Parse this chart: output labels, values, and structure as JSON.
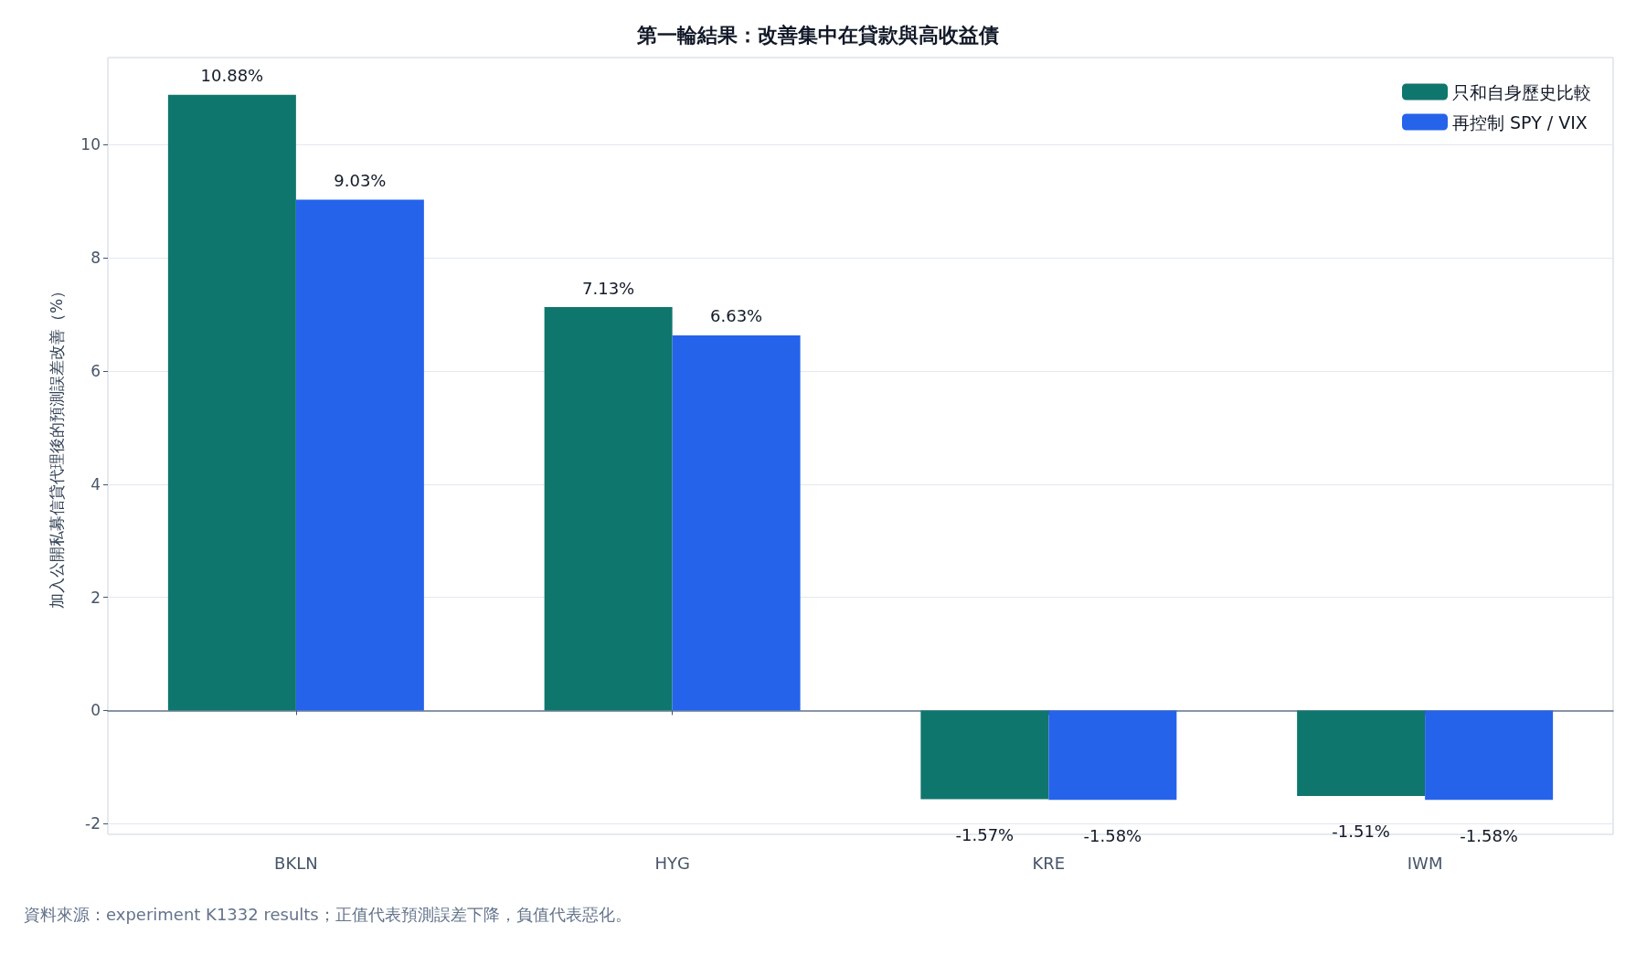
{
  "chart_data": {
    "type": "bar",
    "title": "第一輪結果：改善集中在貸款與高收益債",
    "ylabel": "加入公開私募信貸代理後的預測誤差改善（%）",
    "annotations": [
      "資料來源：experiment K1332 results；正值代表預測誤差下降，負值代表惡化。"
    ],
    "categories": [
      "BKLN",
      "HYG",
      "KRE",
      "IWM"
    ],
    "series": [
      {
        "name": "只和自身歷史比較",
        "color": "#0f766e",
        "values": [
          10.88,
          7.13,
          -1.57,
          -1.51
        ],
        "value_labels": [
          "10.88%",
          "7.13%",
          "-1.57%",
          "-1.51%"
        ]
      },
      {
        "name": "再控制 SPY / VIX",
        "color": "#2563eb",
        "values": [
          9.03,
          6.63,
          -1.58,
          -1.58
        ],
        "value_labels": [
          "9.03%",
          "6.63%",
          "-1.58%",
          "-1.58%"
        ]
      }
    ],
    "ylim": [
      -2.19,
      11.54
    ],
    "yticks": [
      -2,
      0,
      2,
      4,
      6,
      8,
      10
    ],
    "grid": "y",
    "legend": "top right"
  }
}
